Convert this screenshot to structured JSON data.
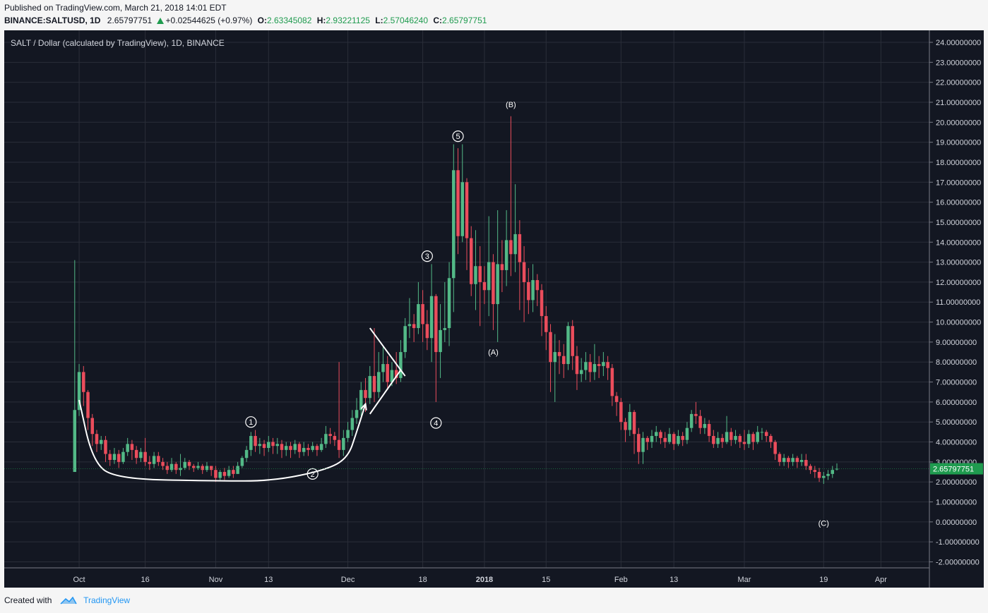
{
  "header": {
    "published": "Published on TradingView.com, March 21, 2018 14:01 EDT",
    "symbol": "BINANCE:SALTUSD, 1D",
    "last": "2.65797751",
    "change": "+0.02544625 (+0.97%)",
    "o_label": "O:",
    "o_value": "2.63345082",
    "h_label": "H:",
    "h_value": "2.93221125",
    "l_label": "L:",
    "l_value": "2.57046240",
    "c_label": "C:",
    "c_value": "2.65797751"
  },
  "footer": {
    "created_with": "Created with",
    "brand": "TradingView"
  },
  "colors": {
    "bg": "#131722",
    "grid": "#2a2e39",
    "up": "#53b987",
    "down": "#eb4d5c",
    "annotation": "#ffffff",
    "price_label": "#1f9b4f"
  },
  "chart_data": {
    "type": "candlestick",
    "title": "SALT / Dollar (calculated by TradingView), 1D, BINANCE",
    "price_label": "2.65797751",
    "last_price": 2.65797751,
    "ylim": [
      -2.3,
      24.6
    ],
    "y_ticks": [
      -2,
      -1,
      0,
      1,
      2,
      3,
      4,
      5,
      6,
      7,
      8,
      9,
      10,
      11,
      12,
      13,
      14,
      15,
      16,
      17,
      18,
      19,
      20,
      21,
      22,
      23,
      24
    ],
    "y_tick_labels": [
      "-2.00000000",
      "-1.00000000",
      "0.00000000",
      "1.00000000",
      "2.00000000",
      "3.00000000",
      "4.00000000",
      "5.00000000",
      "6.00000000",
      "7.00000000",
      "8.00000000",
      "9.00000000",
      "10.00000000",
      "11.00000000",
      "12.00000000",
      "13.00000000",
      "14.00000000",
      "15.00000000",
      "16.00000000",
      "17.00000000",
      "18.00000000",
      "19.00000000",
      "20.00000000",
      "21.00000000",
      "22.00000000",
      "23.00000000",
      "24.00000000"
    ],
    "x_labels": [
      {
        "day": 0,
        "text": "Oct",
        "bold": false
      },
      {
        "day": 15,
        "text": "16",
        "bold": false
      },
      {
        "day": 31,
        "text": "Nov",
        "bold": false
      },
      {
        "day": 43,
        "text": "13",
        "bold": false
      },
      {
        "day": 61,
        "text": "Dec",
        "bold": false
      },
      {
        "day": 78,
        "text": "18",
        "bold": false
      },
      {
        "day": 92,
        "text": "2018",
        "bold": true
      },
      {
        "day": 106,
        "text": "15",
        "bold": false
      },
      {
        "day": 123,
        "text": "Feb",
        "bold": false
      },
      {
        "day": 135,
        "text": "13",
        "bold": false
      },
      {
        "day": 151,
        "text": "Mar",
        "bold": false
      },
      {
        "day": 169,
        "text": "19",
        "bold": false
      },
      {
        "day": 182,
        "text": "Apr",
        "bold": false
      }
    ],
    "x_range": [
      -17,
      193
    ],
    "closes": [
      [
        -1,
        5.6,
        2.5,
        13.1,
        2.5
      ],
      [
        0,
        7.5,
        5.6,
        7.9,
        5.3
      ],
      [
        1,
        6.5,
        7.5,
        7.8,
        5.8
      ],
      [
        2,
        5.2,
        6.5,
        6.6,
        4.6
      ],
      [
        3,
        4.4,
        5.2,
        5.4,
        3.8
      ],
      [
        4,
        3.9,
        4.4,
        4.6,
        3.5
      ],
      [
        5,
        4.1,
        3.9,
        4.3,
        3.6
      ],
      [
        6,
        3.4,
        4.1,
        4.3,
        3.0
      ],
      [
        7,
        3.1,
        3.4,
        3.6,
        2.8
      ],
      [
        8,
        3.4,
        3.1,
        3.7,
        2.9
      ],
      [
        9,
        3.0,
        3.4,
        3.6,
        2.7
      ],
      [
        10,
        3.5,
        3.0,
        3.7,
        2.9
      ],
      [
        11,
        3.9,
        3.5,
        4.2,
        3.3
      ],
      [
        12,
        3.6,
        3.9,
        4.1,
        3.1
      ],
      [
        13,
        3.2,
        3.6,
        3.8,
        2.9
      ],
      [
        14,
        3.5,
        3.2,
        3.7,
        3.0
      ],
      [
        15,
        3.0,
        3.5,
        4.2,
        2.8
      ],
      [
        16,
        2.9,
        3.0,
        3.3,
        2.6
      ],
      [
        17,
        3.3,
        2.9,
        3.5,
        2.7
      ],
      [
        18,
        3.0,
        3.3,
        3.5,
        2.8
      ],
      [
        19,
        2.8,
        3.0,
        3.2,
        2.6
      ],
      [
        20,
        2.6,
        2.8,
        3.0,
        2.4
      ],
      [
        21,
        2.9,
        2.6,
        3.2,
        2.5
      ],
      [
        22,
        2.6,
        2.9,
        3.0,
        2.4
      ],
      [
        23,
        2.7,
        2.6,
        3.4,
        2.3
      ],
      [
        24,
        3.0,
        2.7,
        3.2,
        2.6
      ],
      [
        25,
        2.8,
        3.0,
        3.1,
        2.6
      ],
      [
        26,
        2.7,
        2.8,
        2.9,
        2.5
      ],
      [
        27,
        2.8,
        2.7,
        3.0,
        2.6
      ],
      [
        28,
        2.6,
        2.8,
        2.9,
        2.4
      ],
      [
        29,
        2.8,
        2.6,
        3.0,
        2.5
      ],
      [
        30,
        2.6,
        2.8,
        2.8,
        2.3
      ],
      [
        31,
        2.2,
        2.6,
        2.8,
        2.0
      ],
      [
        32,
        2.5,
        2.2,
        2.6,
        2.1
      ],
      [
        33,
        2.3,
        2.5,
        2.7,
        2.1
      ],
      [
        34,
        2.6,
        2.3,
        2.8,
        2.2
      ],
      [
        35,
        2.4,
        2.6,
        2.8,
        2.2
      ],
      [
        36,
        2.8,
        2.4,
        3.0,
        2.4
      ],
      [
        37,
        3.2,
        2.8,
        3.3,
        2.7
      ],
      [
        38,
        3.6,
        3.2,
        3.8,
        3.0
      ],
      [
        39,
        4.3,
        3.6,
        4.5,
        3.3
      ],
      [
        40,
        3.8,
        4.3,
        4.6,
        3.5
      ],
      [
        41,
        3.9,
        3.8,
        4.2,
        3.4
      ],
      [
        42,
        3.7,
        3.9,
        4.1,
        3.3
      ],
      [
        43,
        4.0,
        3.7,
        4.3,
        3.5
      ],
      [
        44,
        3.8,
        4.0,
        4.2,
        3.4
      ],
      [
        45,
        3.9,
        3.8,
        4.2,
        3.4
      ],
      [
        46,
        3.6,
        3.9,
        4.1,
        3.2
      ],
      [
        47,
        3.8,
        3.6,
        4.0,
        3.3
      ],
      [
        48,
        3.6,
        3.8,
        4.0,
        3.2
      ],
      [
        49,
        3.9,
        3.6,
        4.1,
        3.4
      ],
      [
        50,
        3.5,
        3.9,
        4.0,
        3.2
      ],
      [
        51,
        3.7,
        3.5,
        4.0,
        3.3
      ],
      [
        52,
        3.6,
        3.7,
        3.9,
        3.3
      ],
      [
        53,
        3.8,
        3.6,
        4.0,
        3.5
      ],
      [
        54,
        3.6,
        3.8,
        3.9,
        3.3
      ],
      [
        55,
        3.9,
        3.6,
        4.2,
        3.5
      ],
      [
        56,
        4.4,
        3.9,
        4.8,
        3.7
      ],
      [
        57,
        4.3,
        4.4,
        4.7,
        3.9
      ],
      [
        58,
        4.1,
        4.3,
        4.5,
        3.8
      ],
      [
        59,
        3.6,
        4.1,
        8.0,
        3.2
      ],
      [
        60,
        4.2,
        3.6,
        4.6,
        3.3
      ],
      [
        61,
        4.6,
        4.2,
        5.0,
        4.0
      ],
      [
        62,
        5.2,
        4.6,
        5.6,
        4.3
      ],
      [
        63,
        5.6,
        5.2,
        6.2,
        4.9
      ],
      [
        64,
        6.6,
        5.6,
        7.0,
        5.3
      ],
      [
        65,
        6.2,
        6.6,
        7.2,
        5.5
      ],
      [
        66,
        7.3,
        6.2,
        7.8,
        5.9
      ],
      [
        67,
        6.5,
        7.3,
        9.7,
        6.0
      ],
      [
        68,
        7.5,
        6.5,
        8.5,
        6.2
      ],
      [
        69,
        7.9,
        7.5,
        8.8,
        7.0
      ],
      [
        70,
        7.0,
        7.9,
        8.3,
        6.6
      ],
      [
        71,
        7.6,
        7.0,
        8.0,
        6.8
      ],
      [
        72,
        7.2,
        7.6,
        8.5,
        6.9
      ],
      [
        73,
        8.5,
        7.2,
        9.1,
        7.0
      ],
      [
        74,
        9.8,
        8.5,
        10.2,
        8.2
      ],
      [
        75,
        9.9,
        9.8,
        11.2,
        9.2
      ],
      [
        76,
        9.7,
        9.9,
        10.4,
        9.0
      ],
      [
        77,
        10.9,
        9.7,
        12.0,
        9.4
      ],
      [
        78,
        9.9,
        10.9,
        11.6,
        9.0
      ],
      [
        79,
        9.2,
        9.9,
        10.6,
        8.6
      ],
      [
        80,
        11.3,
        9.2,
        12.9,
        8.0
      ],
      [
        81,
        8.5,
        11.3,
        11.4,
        6.0
      ],
      [
        82,
        9.6,
        8.5,
        10.9,
        7.2
      ],
      [
        83,
        9.7,
        9.6,
        12.0,
        9.0
      ],
      [
        84,
        12.2,
        9.7,
        13.0,
        8.8
      ],
      [
        85,
        17.6,
        12.2,
        18.9,
        10.5
      ],
      [
        86,
        14.3,
        17.6,
        18.7,
        13.4
      ],
      [
        87,
        17.0,
        14.3,
        18.9,
        14.0
      ],
      [
        88,
        14.2,
        17.0,
        17.2,
        12.6
      ],
      [
        89,
        11.9,
        14.2,
        14.8,
        11.3
      ],
      [
        90,
        12.8,
        11.9,
        14.6,
        10.6
      ],
      [
        91,
        12.0,
        12.8,
        13.8,
        9.8
      ],
      [
        92,
        11.6,
        12.0,
        12.8,
        10.9
      ],
      [
        93,
        13.0,
        11.6,
        15.3,
        10.3
      ],
      [
        94,
        10.9,
        13.0,
        13.4,
        9.6
      ],
      [
        95,
        12.9,
        10.9,
        15.6,
        9.0
      ],
      [
        96,
        12.6,
        12.9,
        14.1,
        11.5
      ],
      [
        97,
        14.1,
        12.6,
        15.6,
        11.8
      ],
      [
        98,
        13.4,
        14.1,
        20.3,
        12.3
      ],
      [
        99,
        14.4,
        13.4,
        16.9,
        12.5
      ],
      [
        100,
        13.0,
        14.4,
        15.1,
        10.6
      ],
      [
        101,
        12.0,
        13.0,
        13.8,
        10.0
      ],
      [
        102,
        11.1,
        12.0,
        12.7,
        10.4
      ],
      [
        103,
        12.1,
        11.1,
        12.9,
        10.5
      ],
      [
        104,
        11.6,
        12.1,
        12.4,
        10.8
      ],
      [
        105,
        10.3,
        11.6,
        11.9,
        9.3
      ],
      [
        106,
        9.5,
        10.3,
        10.8,
        8.6
      ],
      [
        107,
        8.0,
        9.5,
        9.9,
        6.5
      ],
      [
        108,
        8.5,
        8.0,
        9.4,
        6.0
      ],
      [
        109,
        8.3,
        8.5,
        9.1,
        7.4
      ],
      [
        110,
        7.9,
        8.3,
        8.9,
        7.2
      ],
      [
        111,
        9.8,
        7.9,
        10.0,
        7.6
      ],
      [
        112,
        8.3,
        9.8,
        10.1,
        7.6
      ],
      [
        113,
        7.4,
        8.3,
        8.8,
        6.6
      ],
      [
        114,
        7.6,
        7.4,
        8.2,
        7.0
      ],
      [
        115,
        8.0,
        7.6,
        8.5,
        7.1
      ],
      [
        116,
        7.5,
        8.0,
        8.4,
        7.0
      ],
      [
        117,
        7.9,
        7.5,
        8.9,
        7.1
      ],
      [
        118,
        7.8,
        7.9,
        8.3,
        7.2
      ],
      [
        119,
        8.0,
        7.8,
        8.5,
        7.3
      ],
      [
        120,
        7.7,
        8.0,
        8.3,
        7.1
      ],
      [
        121,
        6.3,
        7.7,
        7.9,
        5.8
      ],
      [
        122,
        6.0,
        6.3,
        6.5,
        5.3
      ],
      [
        123,
        5.0,
        6.0,
        6.2,
        4.6
      ],
      [
        124,
        4.6,
        5.0,
        5.2,
        4.0
      ],
      [
        125,
        5.5,
        4.6,
        5.9,
        4.3
      ],
      [
        126,
        4.4,
        5.5,
        5.6,
        3.4
      ],
      [
        127,
        3.5,
        4.4,
        4.7,
        2.9
      ],
      [
        128,
        4.2,
        3.5,
        4.5,
        2.9
      ],
      [
        129,
        4.0,
        4.2,
        4.3,
        3.6
      ],
      [
        130,
        4.3,
        4.0,
        4.6,
        3.7
      ],
      [
        131,
        4.5,
        4.3,
        4.8,
        4.0
      ],
      [
        132,
        4.2,
        4.5,
        4.6,
        3.9
      ],
      [
        133,
        4.0,
        4.2,
        4.5,
        3.7
      ],
      [
        134,
        4.4,
        4.0,
        4.7,
        3.9
      ],
      [
        135,
        3.9,
        4.4,
        4.5,
        3.6
      ],
      [
        136,
        4.3,
        3.9,
        4.6,
        3.8
      ],
      [
        137,
        4.1,
        4.3,
        4.5,
        3.8
      ],
      [
        138,
        4.7,
        4.1,
        5.0,
        3.9
      ],
      [
        139,
        5.4,
        4.7,
        5.6,
        4.5
      ],
      [
        140,
        5.3,
        5.4,
        6.0,
        4.9
      ],
      [
        141,
        4.7,
        5.3,
        5.6,
        4.4
      ],
      [
        142,
        4.9,
        4.7,
        5.2,
        4.4
      ],
      [
        143,
        4.3,
        4.9,
        5.1,
        4.0
      ],
      [
        144,
        3.9,
        4.3,
        4.6,
        3.7
      ],
      [
        145,
        4.2,
        3.9,
        4.5,
        3.7
      ],
      [
        146,
        4.0,
        4.2,
        4.4,
        3.7
      ],
      [
        147,
        4.5,
        4.0,
        5.3,
        3.9
      ],
      [
        148,
        4.1,
        4.5,
        4.7,
        3.8
      ],
      [
        149,
        4.3,
        4.1,
        4.6,
        3.9
      ],
      [
        150,
        4.0,
        4.3,
        4.4,
        3.7
      ],
      [
        151,
        3.9,
        4.0,
        4.6,
        3.6
      ],
      [
        152,
        4.4,
        3.9,
        4.6,
        3.7
      ],
      [
        153,
        4.0,
        4.4,
        4.5,
        3.6
      ],
      [
        154,
        4.5,
        4.0,
        4.8,
        3.9
      ],
      [
        155,
        4.5,
        4.5,
        4.7,
        4.1
      ],
      [
        156,
        4.3,
        4.5,
        4.6,
        4.0
      ],
      [
        157,
        4.0,
        4.3,
        4.4,
        3.7
      ],
      [
        158,
        3.4,
        4.0,
        4.1,
        3.1
      ],
      [
        159,
        3.0,
        3.4,
        3.5,
        2.8
      ],
      [
        160,
        3.2,
        3.0,
        3.4,
        2.8
      ],
      [
        161,
        3.0,
        3.2,
        3.3,
        2.7
      ],
      [
        162,
        3.2,
        3.0,
        3.4,
        2.8
      ],
      [
        163,
        3.0,
        3.2,
        3.3,
        2.7
      ],
      [
        164,
        3.1,
        3.0,
        3.4,
        2.8
      ],
      [
        165,
        2.8,
        3.1,
        3.4,
        2.6
      ],
      [
        166,
        2.6,
        2.8,
        2.9,
        2.4
      ],
      [
        167,
        2.5,
        2.6,
        2.8,
        2.2
      ],
      [
        168,
        2.2,
        2.5,
        2.7,
        2.0
      ],
      [
        169,
        2.3,
        2.2,
        2.5,
        1.9
      ],
      [
        170,
        2.4,
        2.3,
        2.6,
        2.1
      ],
      [
        171,
        2.6,
        2.4,
        2.8,
        2.2
      ],
      [
        172,
        2.66,
        2.63,
        2.93,
        2.57
      ]
    ],
    "candle_format": [
      "day",
      "close",
      "open",
      "high",
      "low"
    ],
    "annotations": [
      {
        "text": "1",
        "circled": true,
        "day": 39,
        "y": 5.0
      },
      {
        "text": "2",
        "circled": true,
        "day": 53,
        "y": 2.4
      },
      {
        "text": "3",
        "circled": true,
        "day": 79,
        "y": 13.3
      },
      {
        "text": "4",
        "circled": true,
        "day": 81,
        "y": 4.95
      },
      {
        "text": "5",
        "circled": true,
        "day": 86,
        "y": 19.3
      },
      {
        "text": "(A)",
        "circled": false,
        "day": 94,
        "y": 8.5
      },
      {
        "text": "(B)",
        "circled": false,
        "day": 98,
        "y": 20.9
      },
      {
        "text": "(C)",
        "circled": false,
        "day": 169,
        "y": -0.05
      }
    ],
    "drawings": [
      {
        "type": "curve",
        "points": [
          [
            0,
            6.1
          ],
          [
            3,
            3.1
          ],
          [
            8,
            2.15
          ],
          [
            31,
            2.05
          ],
          [
            44,
            2.05
          ],
          [
            56,
            2.6
          ],
          [
            61,
            3.2
          ],
          [
            63,
            4.5
          ],
          [
            65,
            5.9
          ]
        ],
        "arrow": true
      },
      {
        "type": "line",
        "points": [
          [
            66,
            9.7
          ],
          [
            74,
            7.3
          ]
        ]
      },
      {
        "type": "line",
        "points": [
          [
            66,
            5.4
          ],
          [
            73,
            7.6
          ]
        ]
      }
    ]
  }
}
